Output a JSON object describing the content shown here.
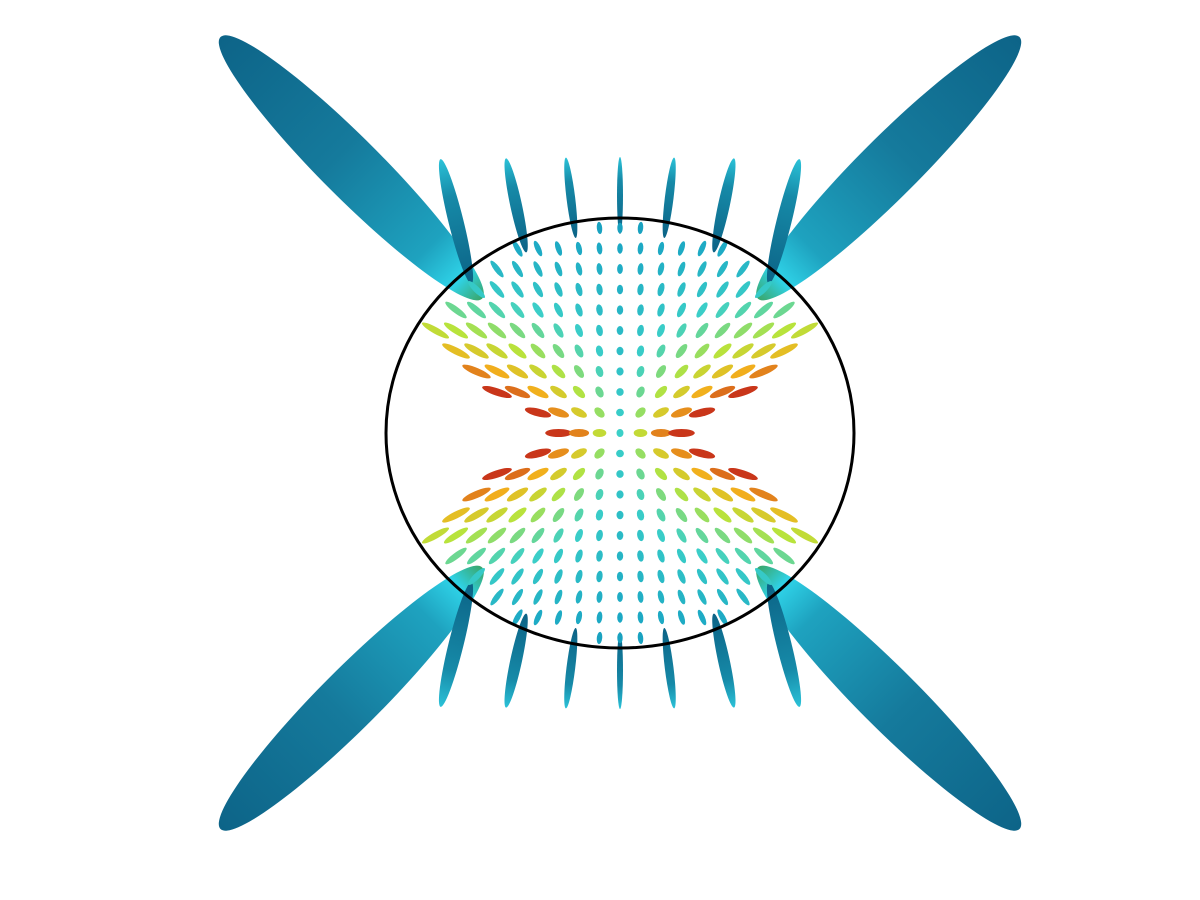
{
  "figure": {
    "boundary_circle": {
      "stroke": "#000000"
    },
    "colormap": [
      "#0b5f7e",
      "#1aa6c4",
      "#3cd0c8",
      "#b8e33c",
      "#f2b21d",
      "#c9361a"
    ],
    "glyph_shape": "ellipsoid",
    "long_beam_color": "#1a7f9f",
    "edge_highlight_color": "#22c6e6",
    "background": "#ffffff"
  }
}
